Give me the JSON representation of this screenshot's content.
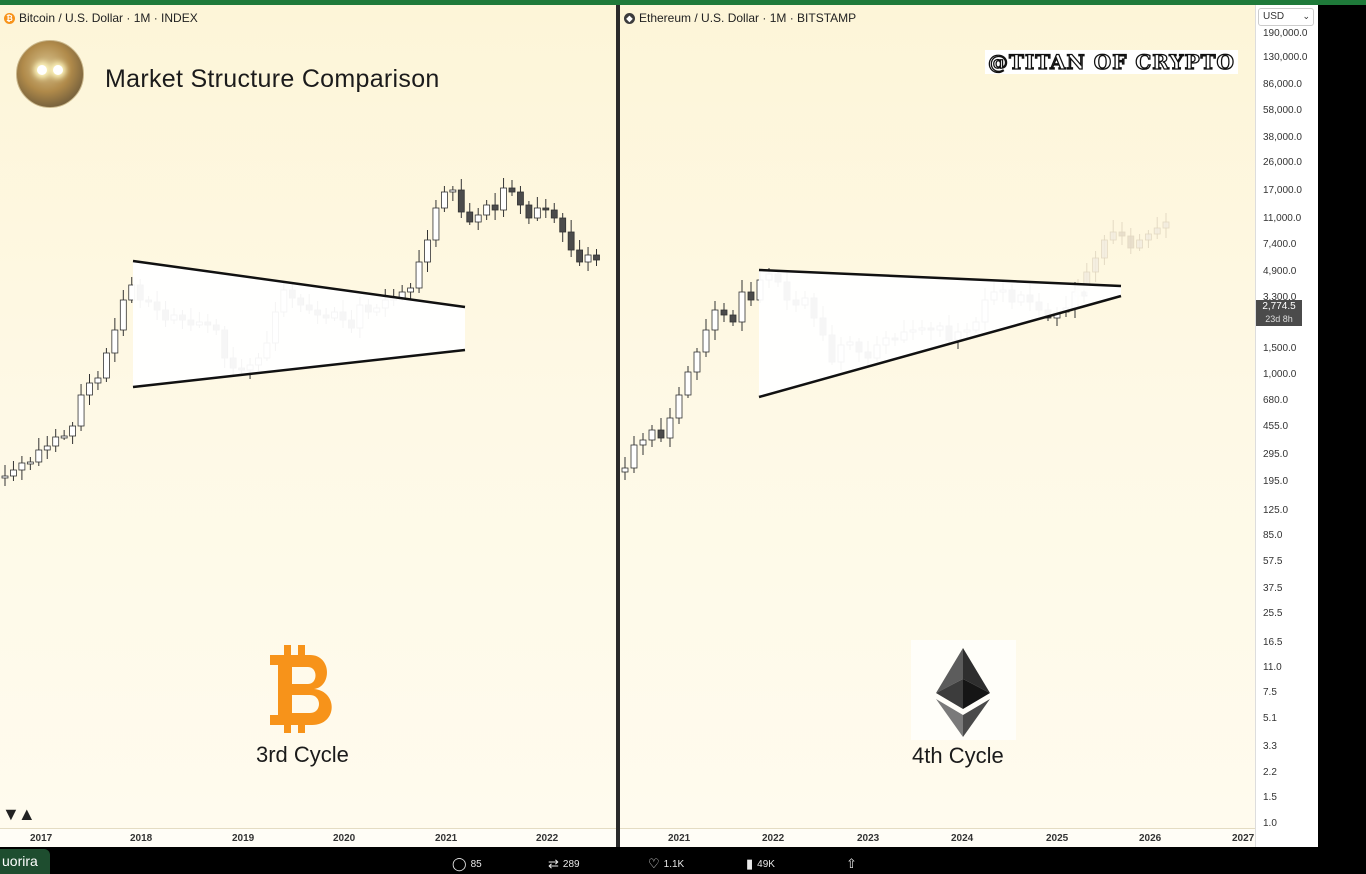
{
  "colors": {
    "bull_fill": "#ffffff",
    "bear_fill": "#4b4b4b",
    "wick": "#333333",
    "pattern": "#111111",
    "btc_orange": "#f7931a",
    "projection": "#e6dcc9"
  },
  "btc_panel": {
    "header": "Bitcoin / U.S. Dollar · 1M · INDEX",
    "title": "Market Structure Comparison",
    "cycle_label": "3rd Cycle",
    "logo_icon": "bitcoin-logo-icon",
    "x_ticks": [
      "2017",
      "2018",
      "2019",
      "2020",
      "2021",
      "2022"
    ]
  },
  "eth_panel": {
    "header": "Ethereum / U.S. Dollar · 1M · BITSTAMP",
    "watermark": "@TITAN OF CRYPTO",
    "cycle_label": "4th Cycle",
    "logo_icon": "ethereum-logo-icon",
    "x_ticks": [
      "2021",
      "2022",
      "2023",
      "2024",
      "2025",
      "2026",
      "2027"
    ]
  },
  "price_axis": {
    "currency": "USD",
    "labels": [
      "190,000.0",
      "130,000.0",
      "86,000.0",
      "58,000.0",
      "38,000.0",
      "26,000.0",
      "17,000.0",
      "11,000.0",
      "7,400.0",
      "4,900.0",
      "3,300.0",
      "1,500.0",
      "1,000.0",
      "680.0",
      "455.0",
      "295.0",
      "195.0",
      "125.0",
      "85.0",
      "57.5",
      "37.5",
      "25.5",
      "16.5",
      "11.0",
      "7.5",
      "5.1",
      "3.3",
      "2.2",
      "1.5",
      "1.0"
    ],
    "last_price": "2,774.5",
    "countdown": "23d 8h"
  },
  "bottom_bar": {
    "tab_label": "uorira",
    "replies": "85",
    "reposts": "289",
    "likes": "1.1K",
    "views": "49K"
  },
  "chart_data": [
    {
      "type": "candlestick",
      "title": "Bitcoin / U.S. Dollar · 1M · INDEX",
      "interval": "1M",
      "scale": "log",
      "x_ticks": [
        "2017",
        "2018",
        "2019",
        "2020",
        "2021",
        "2022"
      ],
      "shape": [
        [
          0.0,
          0.8
        ],
        [
          0.02,
          0.8
        ],
        [
          0.04,
          0.79
        ],
        [
          0.06,
          0.77
        ],
        [
          0.08,
          0.75
        ],
        [
          0.1,
          0.73
        ],
        [
          0.12,
          0.72
        ],
        [
          0.14,
          0.7
        ],
        [
          0.16,
          0.66
        ],
        [
          0.18,
          0.62
        ],
        [
          0.2,
          0.61
        ],
        [
          0.22,
          0.58
        ],
        [
          0.24,
          0.55
        ],
        [
          0.26,
          0.5
        ],
        [
          0.28,
          0.43
        ],
        [
          0.3,
          0.36
        ],
        [
          0.32,
          0.38
        ],
        [
          0.34,
          0.4
        ],
        [
          0.36,
          0.42
        ],
        [
          0.38,
          0.44
        ],
        [
          0.4,
          0.41
        ],
        [
          0.42,
          0.42
        ],
        [
          0.44,
          0.42
        ],
        [
          0.46,
          0.43
        ],
        [
          0.48,
          0.46
        ],
        [
          0.5,
          0.48
        ],
        [
          0.52,
          0.47
        ],
        [
          0.54,
          0.46
        ],
        [
          0.56,
          0.44
        ],
        [
          0.58,
          0.4
        ],
        [
          0.6,
          0.36
        ],
        [
          0.62,
          0.35
        ],
        [
          0.64,
          0.38
        ],
        [
          0.66,
          0.39
        ],
        [
          0.68,
          0.4
        ],
        [
          0.7,
          0.41
        ],
        [
          0.72,
          0.39
        ],
        [
          0.74,
          0.4
        ],
        [
          0.76,
          0.43
        ],
        [
          0.78,
          0.4
        ],
        [
          0.8,
          0.38
        ],
        [
          0.82,
          0.37
        ],
        [
          0.84,
          0.35
        ],
        [
          0.86,
          0.34
        ],
        [
          0.88,
          0.3
        ],
        [
          0.9,
          0.26
        ],
        [
          0.92,
          0.2
        ],
        [
          0.94,
          0.15
        ],
        [
          0.96,
          0.13
        ],
        [
          0.98,
          0.12
        ],
        [
          1.0,
          0.12
        ]
      ],
      "candles_ohlc_note": "monthly candles rising from 2017 to a 2017-end peak, 2018-2020 consolidation inside a symmetrical triangle, breakout to a 2021 peak, 2022 decline"
    },
    {
      "type": "candlestick",
      "title": "Ethereum / U.S. Dollar · 1M · BITSTAMP",
      "interval": "1M",
      "scale": "log",
      "x_ticks": [
        "2021",
        "2022",
        "2023",
        "2024",
        "2025",
        "2026",
        "2027"
      ],
      "last_price": 2774.5,
      "candles_ohlc_note": "monthly candles rising through 2021 to a late-2021 peak, 2022-2025 consolidation inside a converging triangle, faded projection candles into 2026"
    }
  ]
}
